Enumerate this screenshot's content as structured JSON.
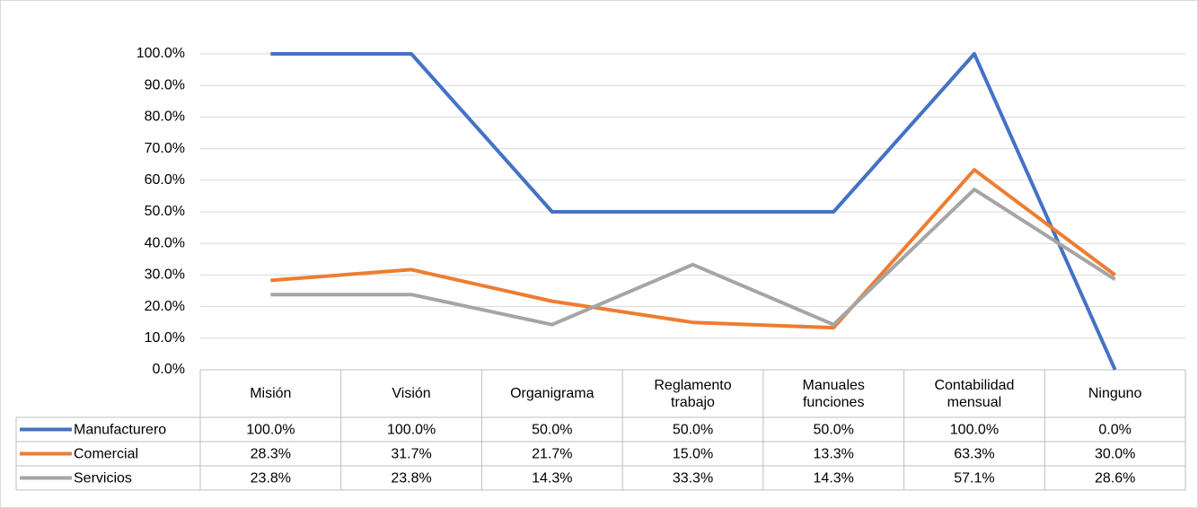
{
  "chart_data": {
    "type": "line",
    "categories": [
      "Misión",
      "Visión",
      "Organigrama",
      "Reglamento trabajo",
      "Manuales funciones",
      "Contabilidad mensual",
      "Ninguno"
    ],
    "series": [
      {
        "name": "Manufacturero",
        "color": "#4472c4",
        "values": [
          100,
          100,
          50,
          50,
          50,
          100,
          0
        ],
        "value_labels": [
          "100.0%",
          "100.0%",
          "50.0%",
          "50.0%",
          "50.0%",
          "100.0%",
          "0.0%"
        ]
      },
      {
        "name": "Comercial",
        "color": "#ed7d31",
        "values": [
          28.3,
          31.7,
          21.7,
          15.0,
          13.3,
          63.3,
          30.0
        ],
        "value_labels": [
          "28.3%",
          "31.7%",
          "21.7%",
          "15.0%",
          "13.3%",
          "63.3%",
          "30.0%"
        ]
      },
      {
        "name": "Servicios",
        "color": "#a5a5a5",
        "values": [
          23.8,
          23.8,
          14.3,
          33.3,
          14.3,
          57.1,
          28.6
        ],
        "value_labels": [
          "23.8%",
          "23.8%",
          "14.3%",
          "33.3%",
          "14.3%",
          "57.1%",
          "28.6%"
        ]
      }
    ],
    "ylim": [
      0,
      100
    ],
    "yticks": [
      {
        "value": 0,
        "label": "0.0%"
      },
      {
        "value": 10,
        "label": "10.0%"
      },
      {
        "value": 20,
        "label": "20.0%"
      },
      {
        "value": 30,
        "label": "30.0%"
      },
      {
        "value": 40,
        "label": "40.0%"
      },
      {
        "value": 50,
        "label": "50.0%"
      },
      {
        "value": 60,
        "label": "60.0%"
      },
      {
        "value": 70,
        "label": "70.0%"
      },
      {
        "value": 80,
        "label": "80.0%"
      },
      {
        "value": 90,
        "label": "90.0%"
      },
      {
        "value": 100,
        "label": "100.0%"
      }
    ],
    "grid": true
  }
}
